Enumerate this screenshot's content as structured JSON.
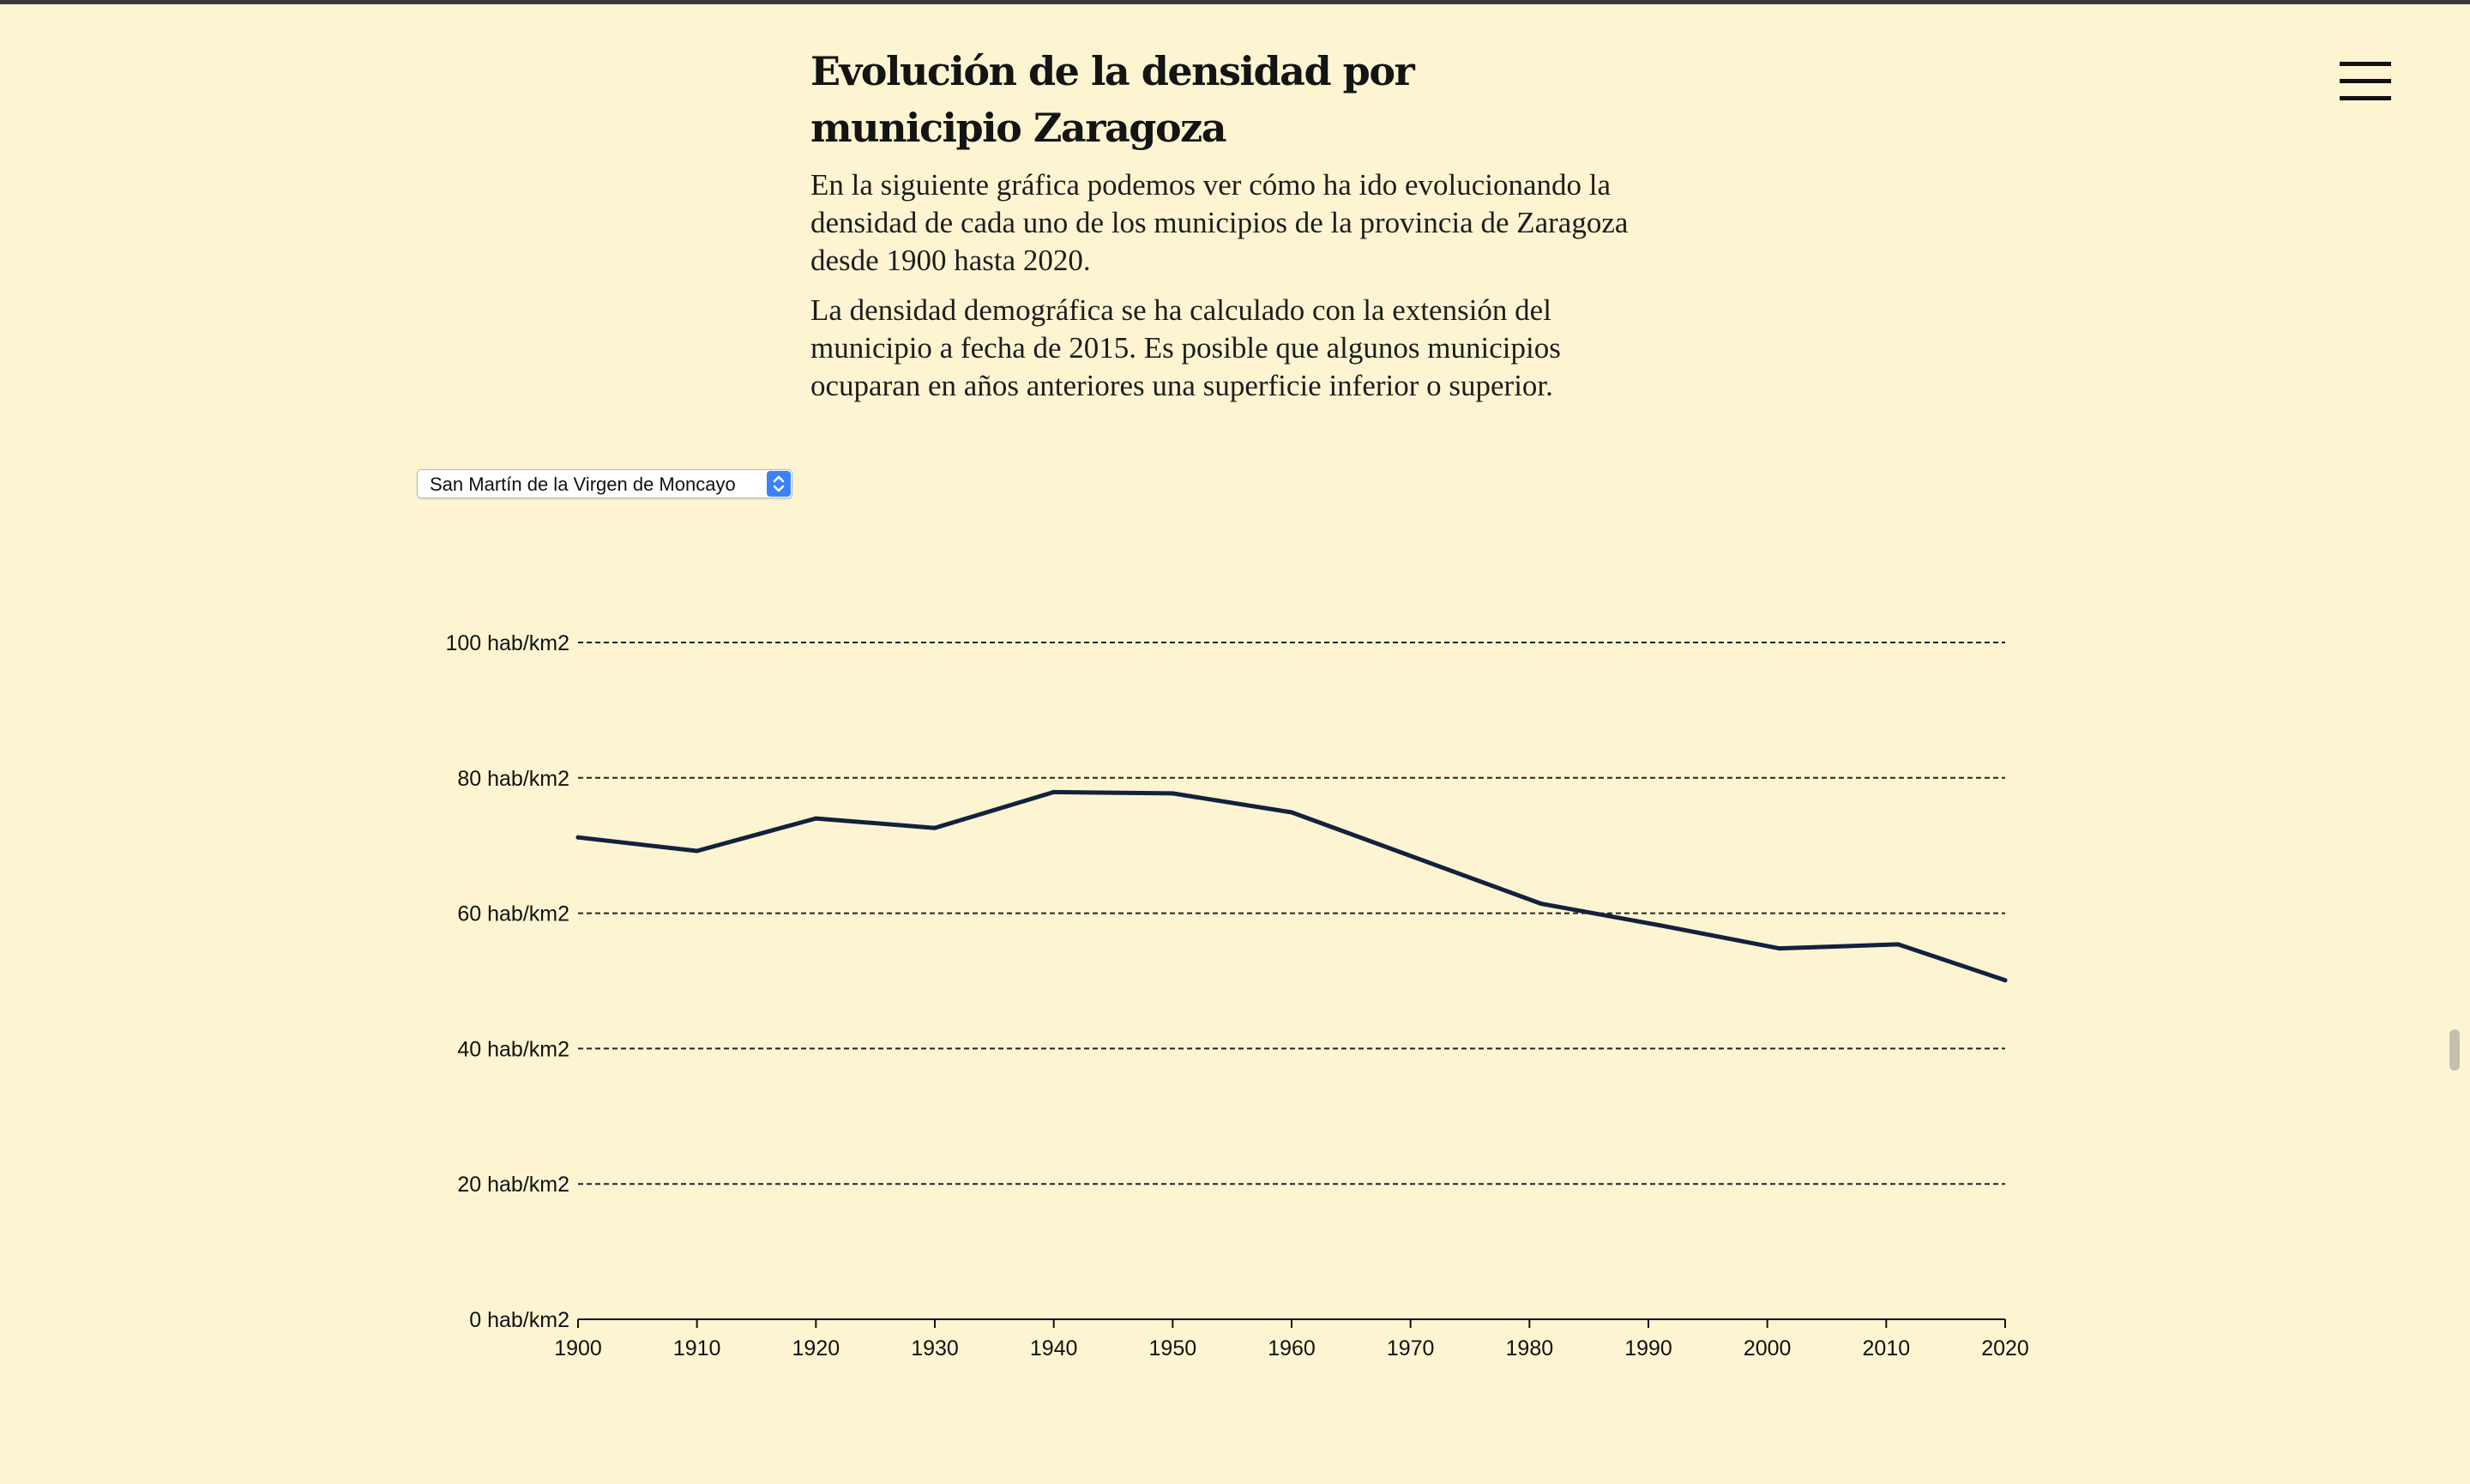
{
  "header": {
    "title": "Evolución de la densidad por municipio Zaragoza",
    "paragraph1": "En la siguiente gráfica podemos ver cómo ha ido evolucionando la densidad de cada uno de los municipios de la provincia de Zaragoza desde 1900 hasta 2020.",
    "paragraph2": "La densidad demográfica se ha calculado con la extensión del municipio a fecha de 2015. Es posible que algunos municipios ocuparan en años anteriores una superficie inferior o superior."
  },
  "menu": {
    "icon": "hamburger-menu-icon"
  },
  "selector": {
    "selected": "San Martín de la Virgen de Moncayo"
  },
  "colors": {
    "background": "#fdf5d2",
    "line": "#14213d",
    "accent": "#3b82f6"
  },
  "chart_data": {
    "type": "line",
    "y_tick_labels": [
      "0 hab/km2",
      "20 hab/km2",
      "40 hab/km2",
      "60 hab/km2",
      "80 hab/km2",
      "100 hab/km2"
    ],
    "y_ticks": [
      0,
      20,
      40,
      60,
      80,
      100
    ],
    "x_tick_labels": [
      "1900",
      "1910",
      "1920",
      "1930",
      "1940",
      "1950",
      "1960",
      "1970",
      "1980",
      "1990",
      "2000",
      "2010",
      "2020"
    ],
    "x_ticks": [
      1900,
      1910,
      1920,
      1930,
      1940,
      1950,
      1960,
      1970,
      1980,
      1990,
      2000,
      2010,
      2020
    ],
    "xlim": [
      1900,
      2020
    ],
    "ylim": [
      0,
      100
    ],
    "grid": "horizontal dashed",
    "series": [
      {
        "x": [
          1900,
          1910,
          1920,
          1930,
          1940,
          1950,
          1960,
          1981,
          1991,
          2001,
          2011,
          2020
        ],
        "y": [
          71.2,
          69.2,
          74.0,
          72.6,
          77.9,
          77.7,
          74.9,
          61.4,
          58.2,
          54.8,
          55.4,
          50.1
        ]
      }
    ]
  }
}
